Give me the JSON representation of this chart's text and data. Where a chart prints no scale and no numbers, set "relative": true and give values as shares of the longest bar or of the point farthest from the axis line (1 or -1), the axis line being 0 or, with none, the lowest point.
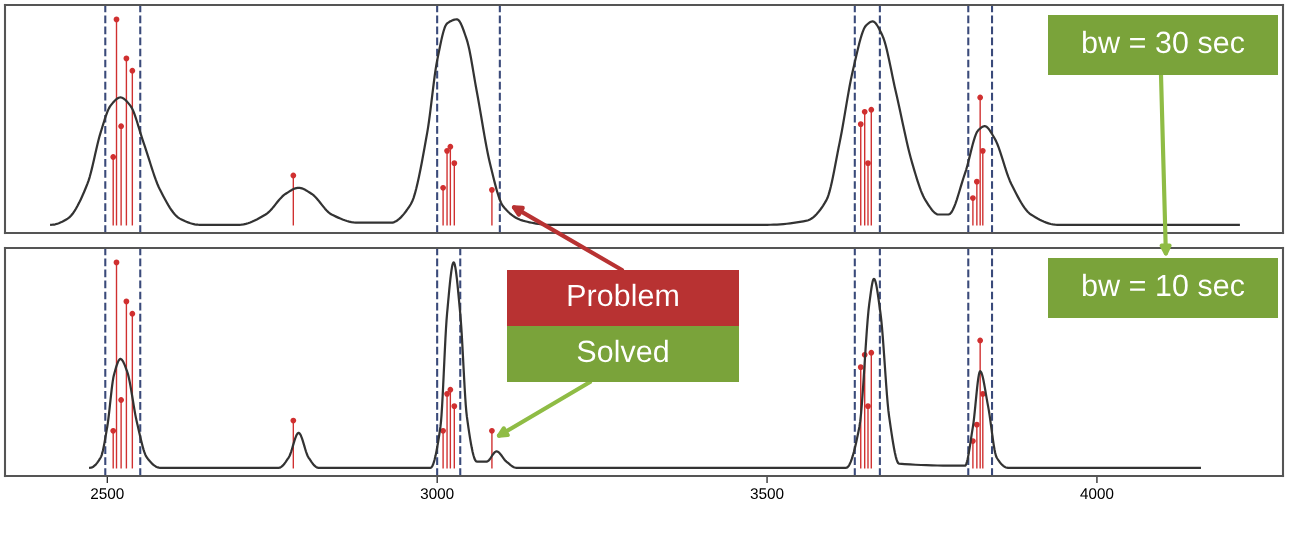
{
  "chart_data": [
    {
      "type": "line",
      "relative": true,
      "xlim": [
        2345,
        4282
      ],
      "xticks": [
        2500,
        3000,
        3500,
        4000
      ],
      "tick_labels": false,
      "grid": false,
      "series": [
        {
          "color": "#333333",
          "marker": "none",
          "x": [
            2415,
            2440,
            2470,
            2490,
            2505,
            2520,
            2535,
            2555,
            2580,
            2610,
            2640,
            2700,
            2740,
            2770,
            2790,
            2810,
            2840,
            2880,
            2930,
            2960,
            2985,
            3000,
            3015,
            3030,
            3045,
            3060,
            3080,
            3100,
            3130,
            3170,
            3500,
            3560,
            3590,
            3610,
            3630,
            3650,
            3660,
            3675,
            3695,
            3720,
            3740,
            3760,
            3775,
            3800,
            3820,
            3830,
            3845,
            3870,
            3900,
            3940,
            4215
          ],
          "values": [
            0.0,
            0.03,
            0.2,
            0.45,
            0.58,
            0.62,
            0.58,
            0.4,
            0.17,
            0.03,
            0.0,
            0.0,
            0.05,
            0.15,
            0.18,
            0.15,
            0.05,
            0.01,
            0.01,
            0.1,
            0.45,
            0.8,
            0.98,
            1.0,
            0.9,
            0.65,
            0.3,
            0.09,
            0.02,
            0.0,
            0.0,
            0.02,
            0.12,
            0.4,
            0.75,
            0.97,
            0.99,
            0.92,
            0.65,
            0.3,
            0.12,
            0.05,
            0.05,
            0.25,
            0.46,
            0.48,
            0.42,
            0.2,
            0.05,
            0.0,
            0.0
          ]
        },
        {
          "type": "lollipop",
          "color": "#d03030",
          "marker": "circle",
          "x": [
            2509,
            2514,
            2521,
            2529,
            2538,
            2782,
            3009,
            3015,
            3020,
            3026,
            3083,
            3642,
            3648,
            3653,
            3658,
            3812,
            3818,
            3823,
            3827
          ],
          "values": [
            0.33,
            1.0,
            0.48,
            0.81,
            0.75,
            0.24,
            0.18,
            0.36,
            0.38,
            0.3,
            0.17,
            0.49,
            0.55,
            0.3,
            0.56,
            0.13,
            0.21,
            0.62,
            0.36
          ]
        }
      ],
      "ref_lines": [
        {
          "axis": "x",
          "value": 2497,
          "color": "#3a4a7a",
          "line_style": "dashed"
        },
        {
          "axis": "x",
          "value": 2550,
          "color": "#3a4a7a",
          "line_style": "dashed"
        },
        {
          "axis": "x",
          "value": 3000,
          "color": "#3a4a7a",
          "line_style": "dashed"
        },
        {
          "axis": "x",
          "value": 3095,
          "color": "#3a4a7a",
          "line_style": "dashed"
        },
        {
          "axis": "x",
          "value": 3633,
          "color": "#3a4a7a",
          "line_style": "dashed"
        },
        {
          "axis": "x",
          "value": 3671,
          "color": "#3a4a7a",
          "line_style": "dashed"
        },
        {
          "axis": "x",
          "value": 3805,
          "color": "#3a4a7a",
          "line_style": "dashed"
        },
        {
          "axis": "x",
          "value": 3841,
          "color": "#3a4a7a",
          "line_style": "dashed"
        }
      ],
      "annotations": [
        "bw = 30 sec",
        "Problem"
      ]
    },
    {
      "type": "line",
      "relative": true,
      "xlim": [
        2345,
        4282
      ],
      "xticks": [
        2500,
        3000,
        3500,
        4000
      ],
      "tick_labels": "x",
      "grid": false,
      "series": [
        {
          "color": "#333333",
          "marker": "none",
          "x": [
            2474,
            2490,
            2500,
            2510,
            2520,
            2530,
            2545,
            2560,
            2580,
            2760,
            2775,
            2790,
            2805,
            2820,
            2990,
            3005,
            3015,
            3025,
            3035,
            3045,
            3060,
            3075,
            3090,
            3105,
            3120,
            3620,
            3640,
            3655,
            3662,
            3672,
            3685,
            3700,
            3800,
            3812,
            3823,
            3835,
            3848,
            3865,
            4156
          ],
          "values": [
            0.0,
            0.05,
            0.2,
            0.45,
            0.53,
            0.47,
            0.22,
            0.05,
            0.0,
            0.0,
            0.05,
            0.17,
            0.05,
            0.0,
            0.0,
            0.2,
            0.75,
            1.0,
            0.75,
            0.25,
            0.03,
            0.03,
            0.08,
            0.03,
            0.0,
            0.0,
            0.2,
            0.8,
            0.92,
            0.75,
            0.25,
            0.02,
            0.01,
            0.2,
            0.47,
            0.3,
            0.05,
            0.0,
            0.0
          ]
        },
        {
          "type": "lollipop",
          "color": "#d03030",
          "marker": "circle",
          "x": [
            2509,
            2514,
            2521,
            2529,
            2538,
            2782,
            3009,
            3015,
            3020,
            3026,
            3083,
            3642,
            3648,
            3653,
            3658,
            3812,
            3818,
            3823,
            3827
          ],
          "values": [
            0.18,
            1.0,
            0.33,
            0.81,
            0.75,
            0.23,
            0.18,
            0.36,
            0.38,
            0.3,
            0.18,
            0.49,
            0.55,
            0.3,
            0.56,
            0.13,
            0.21,
            0.62,
            0.36
          ]
        }
      ],
      "ref_lines": [
        {
          "axis": "x",
          "value": 2497,
          "color": "#3a4a7a",
          "line_style": "dashed"
        },
        {
          "axis": "x",
          "value": 2550,
          "color": "#3a4a7a",
          "line_style": "dashed"
        },
        {
          "axis": "x",
          "value": 3000,
          "color": "#3a4a7a",
          "line_style": "dashed"
        },
        {
          "axis": "x",
          "value": 3035,
          "color": "#3a4a7a",
          "line_style": "dashed"
        },
        {
          "axis": "x",
          "value": 3633,
          "color": "#3a4a7a",
          "line_style": "dashed"
        },
        {
          "axis": "x",
          "value": 3671,
          "color": "#3a4a7a",
          "line_style": "dashed"
        },
        {
          "axis": "x",
          "value": 3805,
          "color": "#3a4a7a",
          "line_style": "dashed"
        },
        {
          "axis": "x",
          "value": 3841,
          "color": "#3a4a7a",
          "line_style": "dashed"
        }
      ],
      "annotations": [
        "bw = 10 sec",
        "Solved"
      ]
    }
  ]
}
